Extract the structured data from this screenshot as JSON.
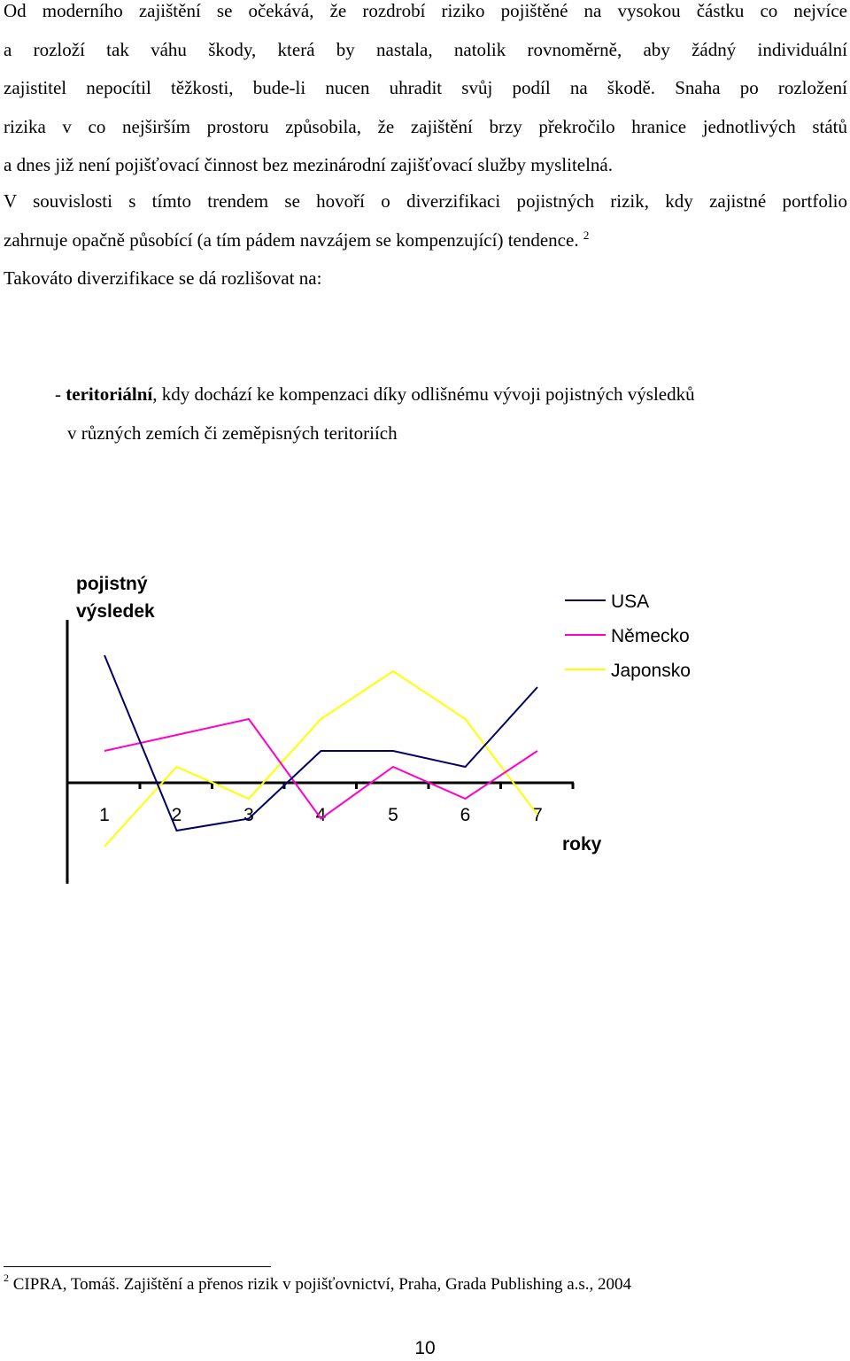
{
  "paragraphs": {
    "p1": [
      "Od moderního zajištění se očekává, že rozdrobí riziko pojištěné na vysokou částku co nejvíce",
      "a rozloží tak váhu škody, která by nastala, natolik rovnoměrně, aby žádný individuální",
      "zajistitel nepocítil těžkosti, bude-li nucen uhradit svůj podíl na škodě. Snaha po rozložení",
      "rizika v co nejširším prostoru způsobila, že zajištění brzy překročilo hranice jednotlivých států",
      "a dnes již není pojišťovací činnost bez mezinárodní zajišťovací služby myslitelná."
    ],
    "p2": [
      "V souvislosti s tímto trendem se hovoří o diverzifikaci pojistných rizik, kdy zajistné portfolio",
      "zahrnuje opačně působící (a tím pádem navzájem se kompenzující) tendence."
    ],
    "p2_sup": "2",
    "p3": "Takováto diverzifikace se dá rozlišovat na:"
  },
  "bullet": {
    "dash": "- ",
    "term": "teritoriální",
    "rest": ", kdy dochází ke kompenzaci díky odlišnému vývoji pojistných výsledků",
    "cont": "v různých zemích či zeměpisných teritoriích"
  },
  "chart_data": {
    "type": "line",
    "ylabel_lines": [
      "pojistný",
      "výsledek"
    ],
    "xlabel": "roky",
    "categories": [
      "1",
      "2",
      "3",
      "4",
      "5",
      "6",
      "7"
    ],
    "ylim": [
      -1.2,
      1.8
    ],
    "legend_position": "top-right",
    "grid": false,
    "series": [
      {
        "name": "USA",
        "color": "#000066",
        "values": [
          1.6,
          -0.6,
          -0.45,
          0.4,
          0.4,
          0.2,
          1.2
        ]
      },
      {
        "name": "Německo",
        "color": "#ff00cc",
        "values": [
          0.4,
          0.6,
          0.8,
          -0.45,
          0.2,
          -0.2,
          0.4
        ]
      },
      {
        "name": "Japonsko",
        "color": "#ffff00",
        "values": [
          -0.8,
          0.2,
          -0.2,
          0.8,
          1.4,
          0.8,
          -0.4
        ]
      }
    ]
  },
  "footnote": {
    "num": "2",
    "text": " CIPRA, Tomáš. Zajištění a přenos rizik v pojišťovnictví, Praha, Grada Publishing a.s., 2004"
  },
  "page_number": "10"
}
